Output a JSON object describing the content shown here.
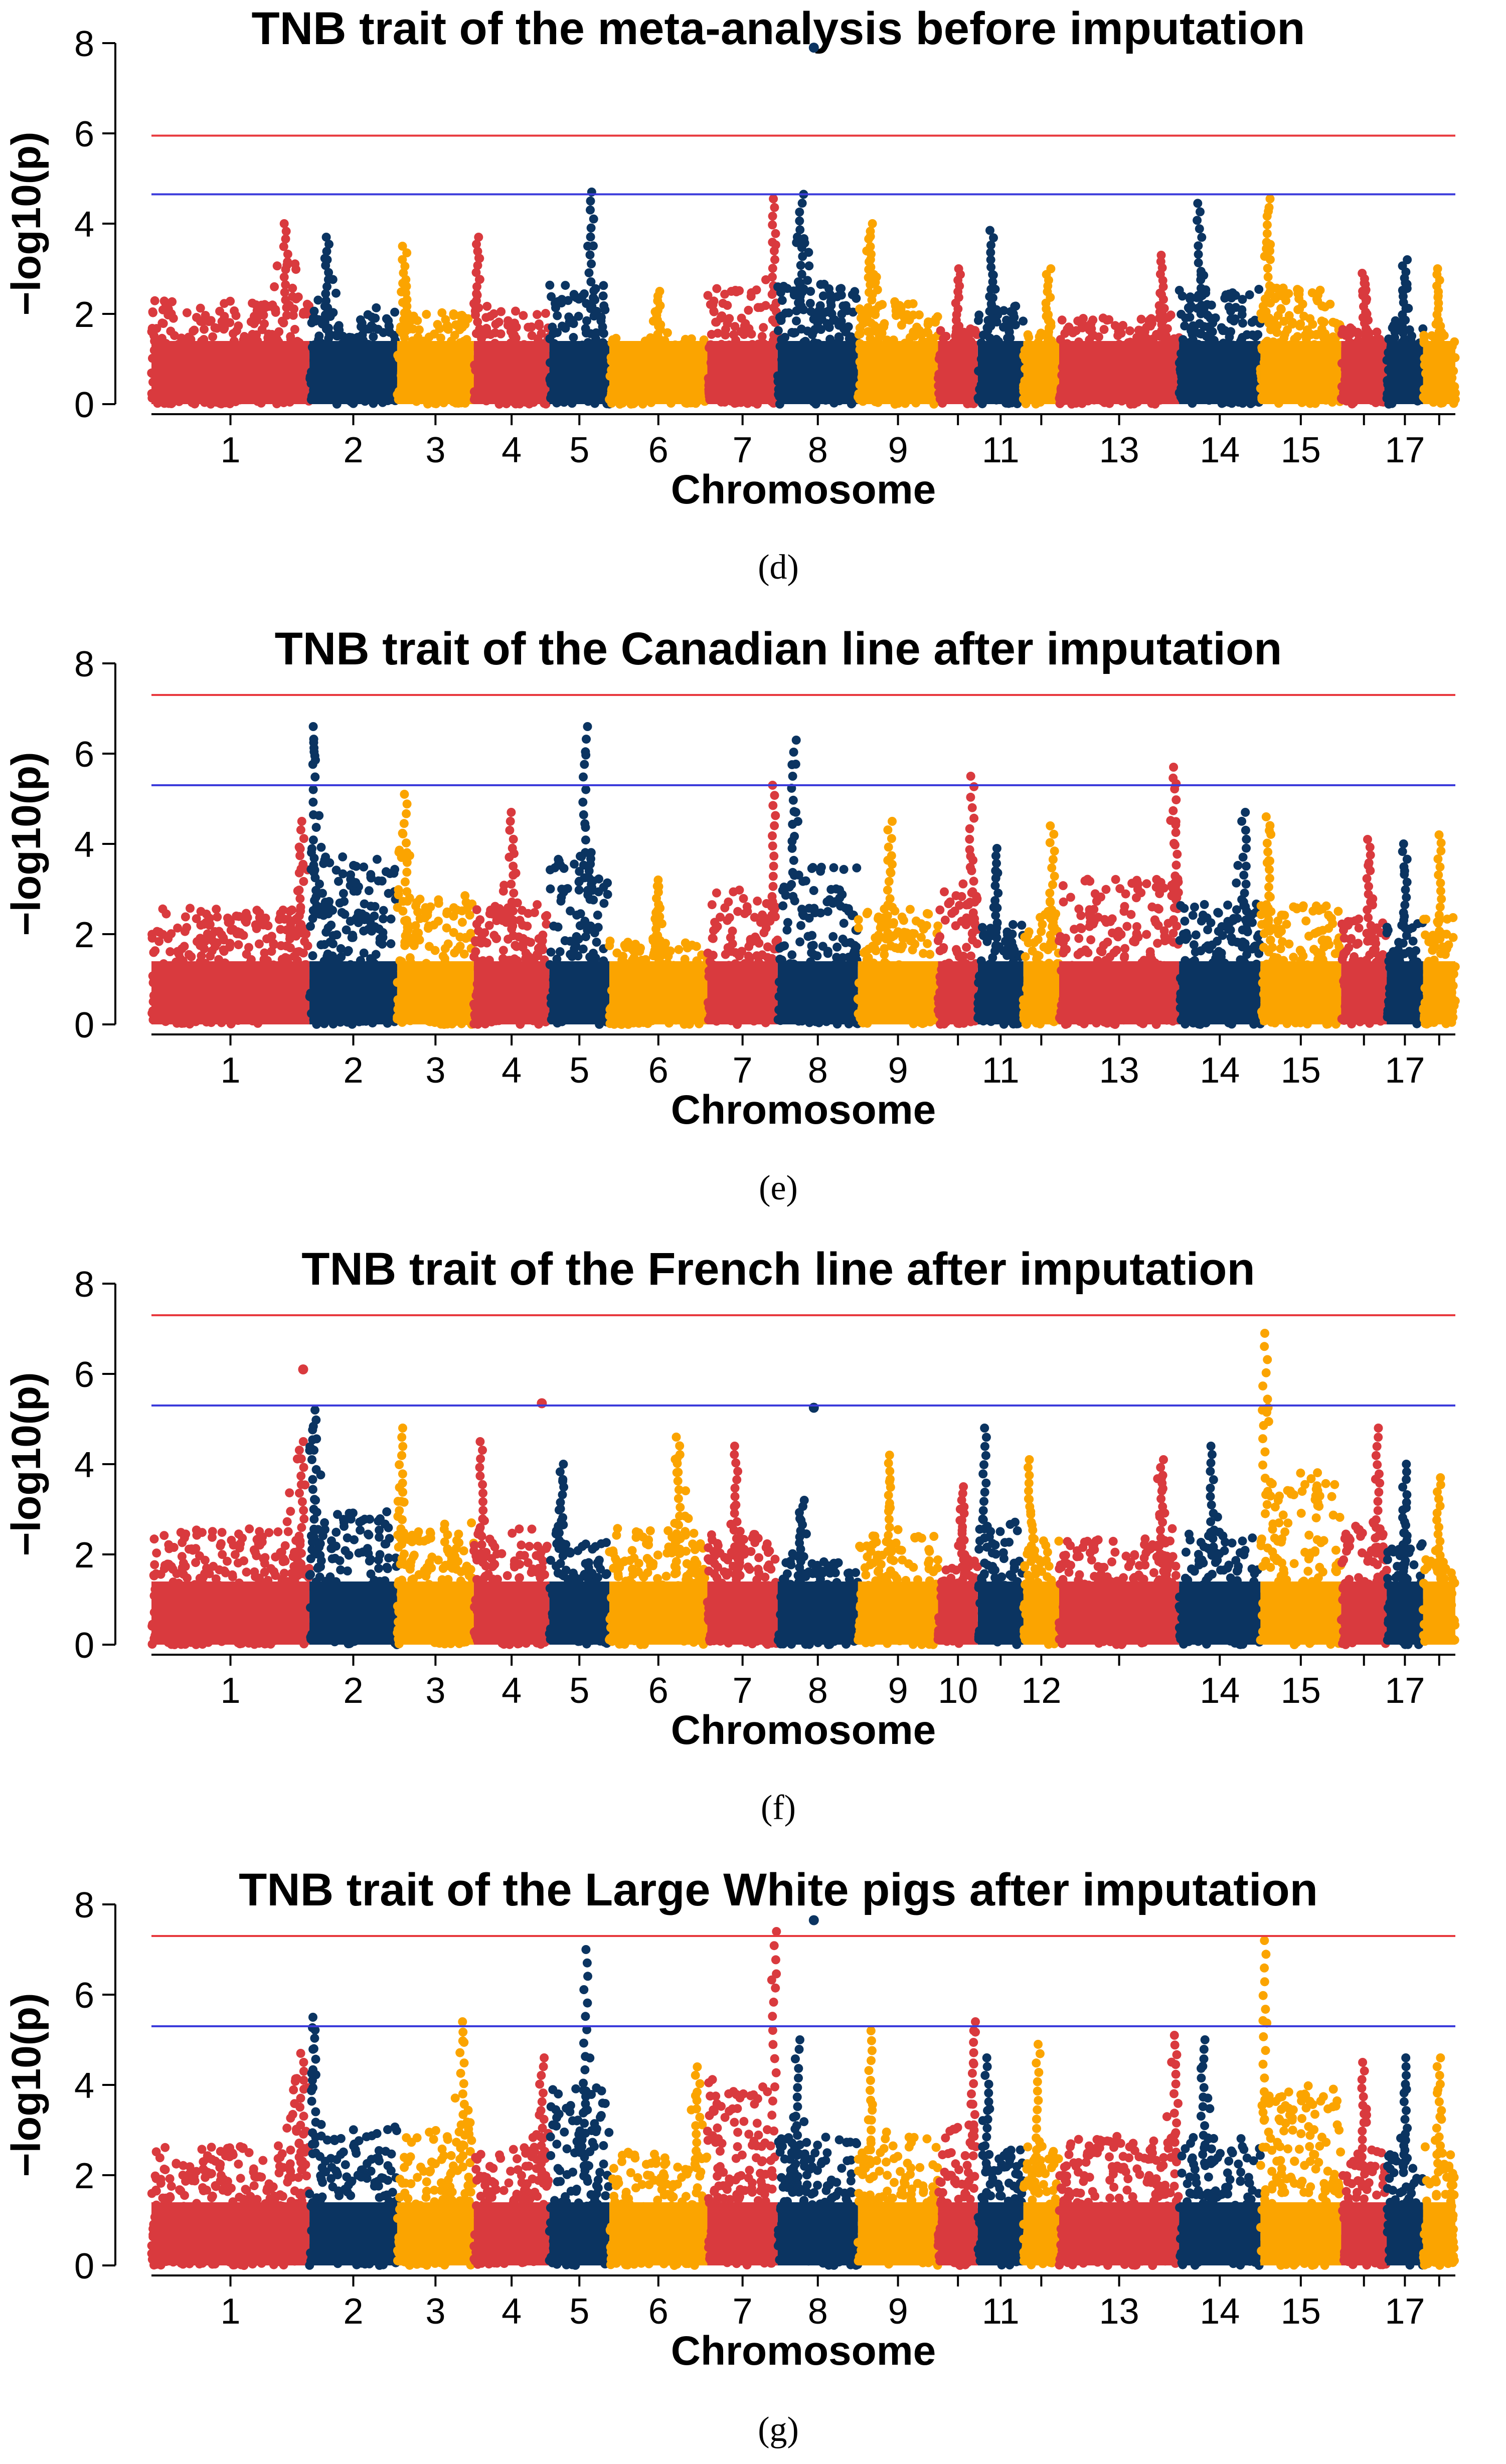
{
  "colors": {
    "red": "#d93a3e",
    "navy": "#0b3461",
    "orange": "#fba400",
    "genome_wide_line": "#e8393e",
    "suggestive_line": "#3b3bdb"
  },
  "chromosome_palette": [
    "red",
    "navy",
    "orange"
  ],
  "chart_data": [
    {
      "type": "scatter",
      "subtype": "manhattan",
      "panel_label": "(d)",
      "title": "TNB trait of the meta-analysis before imputation",
      "xlabel": "Chromosome",
      "ylabel": "−log10(p)",
      "ylim": [
        0,
        8
      ],
      "yticks": [
        0,
        2,
        4,
        6,
        8
      ],
      "xtick_labels": [
        "1",
        "2",
        "3",
        "4",
        "5",
        "6",
        "7",
        "8",
        "9",
        "11",
        "13",
        "14",
        "15",
        "17"
      ],
      "genome_wide_threshold": 5.95,
      "suggestive_threshold": 4.65,
      "chromosomes": [
        {
          "chr": 1,
          "len": 274,
          "max": 4.0,
          "peak_pos": 0.85,
          "tick_label": "1"
        },
        {
          "chr": 2,
          "len": 152,
          "max": 3.7,
          "peak_pos": 0.2,
          "tick_label": "2"
        },
        {
          "chr": 3,
          "len": 133,
          "max": 3.5,
          "peak_pos": 0.1,
          "tick_label": "3"
        },
        {
          "chr": 4,
          "len": 131,
          "max": 3.7,
          "peak_pos": 0.05,
          "tick_label": "4"
        },
        {
          "chr": 5,
          "len": 104,
          "max": 4.7,
          "peak_pos": 0.7,
          "tick_label": "5"
        },
        {
          "chr": 6,
          "len": 170,
          "max": 2.5,
          "peak_pos": 0.5,
          "tick_label": "6"
        },
        {
          "chr": 7,
          "len": 122,
          "max": 4.55,
          "peak_pos": 0.95,
          "tick_label": "7"
        },
        {
          "chr": 8,
          "len": 139,
          "max": 4.65,
          "peak_pos": 0.3,
          "tick_label": "8"
        },
        {
          "chr": 9,
          "len": 139,
          "max": 4.0,
          "peak_pos": 0.15,
          "tick_label": "9"
        },
        {
          "chr": 10,
          "len": 69,
          "max": 3.0,
          "peak_pos": 0.5,
          "tick_label": ""
        },
        {
          "chr": 11,
          "len": 79,
          "max": 3.85,
          "peak_pos": 0.3,
          "tick_label": "11"
        },
        {
          "chr": 12,
          "len": 62,
          "max": 3.0,
          "peak_pos": 0.7,
          "tick_label": ""
        },
        {
          "chr": 13,
          "len": 208,
          "max": 3.3,
          "peak_pos": 0.85,
          "tick_label": "13"
        },
        {
          "chr": 14,
          "len": 141,
          "max": 4.45,
          "peak_pos": 0.25,
          "tick_label": "14"
        },
        {
          "chr": 15,
          "len": 140,
          "max": 4.55,
          "peak_pos": 0.1,
          "tick_label": "15"
        },
        {
          "chr": 16,
          "len": 79,
          "max": 2.9,
          "peak_pos": 0.5,
          "tick_label": ""
        },
        {
          "chr": 17,
          "len": 63,
          "max": 3.2,
          "peak_pos": 0.5,
          "tick_label": "17"
        },
        {
          "chr": 18,
          "len": 56,
          "max": 3.0,
          "peak_pos": 0.5,
          "tick_label": ""
        }
      ],
      "highlighted_points": [
        {
          "chr": 8,
          "pos": 0.45,
          "y": 7.9
        }
      ]
    },
    {
      "type": "scatter",
      "subtype": "manhattan",
      "panel_label": "(e)",
      "title": "TNB trait of the Canadian line after imputation",
      "xlabel": "Chromosome",
      "ylabel": "−log10(p)",
      "ylim": [
        0,
        8
      ],
      "yticks": [
        0,
        2,
        4,
        6,
        8
      ],
      "xtick_labels": [
        "1",
        "2",
        "3",
        "4",
        "5",
        "6",
        "7",
        "8",
        "9",
        "11",
        "13",
        "14",
        "15",
        "17"
      ],
      "genome_wide_threshold": 7.3,
      "suggestive_threshold": 5.3,
      "chromosomes": [
        {
          "chr": 1,
          "len": 274,
          "max": 4.5,
          "peak_pos": 0.95,
          "tick_label": "1"
        },
        {
          "chr": 2,
          "len": 152,
          "max": 6.6,
          "peak_pos": 0.05,
          "tick_label": "2"
        },
        {
          "chr": 3,
          "len": 133,
          "max": 5.1,
          "peak_pos": 0.1,
          "tick_label": "3"
        },
        {
          "chr": 4,
          "len": 131,
          "max": 4.7,
          "peak_pos": 0.5,
          "tick_label": "4"
        },
        {
          "chr": 5,
          "len": 104,
          "max": 6.6,
          "peak_pos": 0.6,
          "tick_label": "5"
        },
        {
          "chr": 6,
          "len": 170,
          "max": 3.2,
          "peak_pos": 0.5,
          "tick_label": "6"
        },
        {
          "chr": 7,
          "len": 122,
          "max": 5.3,
          "peak_pos": 0.95,
          "tick_label": "7"
        },
        {
          "chr": 8,
          "len": 139,
          "max": 6.3,
          "peak_pos": 0.2,
          "tick_label": "8"
        },
        {
          "chr": 9,
          "len": 139,
          "max": 4.5,
          "peak_pos": 0.4,
          "tick_label": "9"
        },
        {
          "chr": 10,
          "len": 69,
          "max": 5.5,
          "peak_pos": 0.85,
          "tick_label": ""
        },
        {
          "chr": 11,
          "len": 79,
          "max": 3.9,
          "peak_pos": 0.4,
          "tick_label": "11"
        },
        {
          "chr": 12,
          "len": 62,
          "max": 4.4,
          "peak_pos": 0.8,
          "tick_label": ""
        },
        {
          "chr": 13,
          "len": 208,
          "max": 5.7,
          "peak_pos": 0.97,
          "tick_label": "13"
        },
        {
          "chr": 14,
          "len": 141,
          "max": 4.7,
          "peak_pos": 0.8,
          "tick_label": "14"
        },
        {
          "chr": 15,
          "len": 140,
          "max": 4.6,
          "peak_pos": 0.1,
          "tick_label": "15"
        },
        {
          "chr": 16,
          "len": 79,
          "max": 4.1,
          "peak_pos": 0.6,
          "tick_label": ""
        },
        {
          "chr": 17,
          "len": 63,
          "max": 4.0,
          "peak_pos": 0.5,
          "tick_label": "17"
        },
        {
          "chr": 18,
          "len": 56,
          "max": 4.2,
          "peak_pos": 0.5,
          "tick_label": ""
        }
      ],
      "highlighted_points": []
    },
    {
      "type": "scatter",
      "subtype": "manhattan",
      "panel_label": "(f)",
      "title": "TNB trait of the French line after imputation",
      "xlabel": "Chromosome",
      "ylabel": "−log10(p)",
      "ylim": [
        0,
        8
      ],
      "yticks": [
        0,
        2,
        4,
        6,
        8
      ],
      "xtick_labels": [
        "1",
        "2",
        "3",
        "4",
        "5",
        "6",
        "7",
        "8",
        "9",
        "10",
        "12",
        "14",
        "15",
        "17"
      ],
      "genome_wide_threshold": 7.3,
      "suggestive_threshold": 5.3,
      "chromosomes": [
        {
          "chr": 1,
          "len": 274,
          "max": 4.5,
          "peak_pos": 0.95,
          "tick_label": "1"
        },
        {
          "chr": 2,
          "len": 152,
          "max": 5.2,
          "peak_pos": 0.05,
          "tick_label": "2"
        },
        {
          "chr": 3,
          "len": 133,
          "max": 4.8,
          "peak_pos": 0.05,
          "tick_label": "3"
        },
        {
          "chr": 4,
          "len": 131,
          "max": 4.5,
          "peak_pos": 0.1,
          "tick_label": "4"
        },
        {
          "chr": 5,
          "len": 104,
          "max": 4.0,
          "peak_pos": 0.2,
          "tick_label": "5"
        },
        {
          "chr": 6,
          "len": 170,
          "max": 4.6,
          "peak_pos": 0.7,
          "tick_label": "6"
        },
        {
          "chr": 7,
          "len": 122,
          "max": 4.4,
          "peak_pos": 0.4,
          "tick_label": "7"
        },
        {
          "chr": 8,
          "len": 139,
          "max": 3.2,
          "peak_pos": 0.3,
          "tick_label": "8"
        },
        {
          "chr": 9,
          "len": 139,
          "max": 4.2,
          "peak_pos": 0.4,
          "tick_label": "9"
        },
        {
          "chr": 10,
          "len": 69,
          "max": 3.5,
          "peak_pos": 0.6,
          "tick_label": "10"
        },
        {
          "chr": 11,
          "len": 79,
          "max": 4.8,
          "peak_pos": 0.15,
          "tick_label": ""
        },
        {
          "chr": 12,
          "len": 62,
          "max": 4.1,
          "peak_pos": 0.2,
          "tick_label": "12"
        },
        {
          "chr": 13,
          "len": 208,
          "max": 4.1,
          "peak_pos": 0.85,
          "tick_label": ""
        },
        {
          "chr": 14,
          "len": 141,
          "max": 4.4,
          "peak_pos": 0.4,
          "tick_label": "14"
        },
        {
          "chr": 15,
          "len": 140,
          "max": 6.9,
          "peak_pos": 0.06,
          "tick_label": "15"
        },
        {
          "chr": 16,
          "len": 79,
          "max": 4.8,
          "peak_pos": 0.8,
          "tick_label": ""
        },
        {
          "chr": 17,
          "len": 63,
          "max": 4.0,
          "peak_pos": 0.5,
          "tick_label": "17"
        },
        {
          "chr": 18,
          "len": 56,
          "max": 3.7,
          "peak_pos": 0.5,
          "tick_label": ""
        }
      ],
      "highlighted_points": [
        {
          "chr": 1,
          "pos": 0.96,
          "y": 6.1
        },
        {
          "chr": 4,
          "pos": 0.9,
          "y": 5.35
        },
        {
          "chr": 8,
          "pos": 0.45,
          "y": 5.25
        }
      ]
    },
    {
      "type": "scatter",
      "subtype": "manhattan",
      "panel_label": "(g)",
      "title": "TNB trait of the Large White pigs after imputation",
      "xlabel": "Chromosome",
      "ylabel": "−log10(p)",
      "ylim": [
        0,
        8
      ],
      "yticks": [
        0,
        2,
        4,
        6,
        8
      ],
      "xtick_labels": [
        "1",
        "2",
        "3",
        "4",
        "5",
        "6",
        "7",
        "8",
        "9",
        "11",
        "13",
        "14",
        "15",
        "17"
      ],
      "genome_wide_threshold": 7.3,
      "suggestive_threshold": 5.3,
      "chromosomes": [
        {
          "chr": 1,
          "len": 274,
          "max": 4.7,
          "peak_pos": 0.95,
          "tick_label": "1"
        },
        {
          "chr": 2,
          "len": 152,
          "max": 5.5,
          "peak_pos": 0.05,
          "tick_label": "2"
        },
        {
          "chr": 3,
          "len": 133,
          "max": 5.4,
          "peak_pos": 0.85,
          "tick_label": "3"
        },
        {
          "chr": 4,
          "len": 131,
          "max": 4.6,
          "peak_pos": 0.9,
          "tick_label": "4"
        },
        {
          "chr": 5,
          "len": 104,
          "max": 7.0,
          "peak_pos": 0.6,
          "tick_label": "5"
        },
        {
          "chr": 6,
          "len": 170,
          "max": 4.4,
          "peak_pos": 0.9,
          "tick_label": "6"
        },
        {
          "chr": 7,
          "len": 122,
          "max": 7.4,
          "peak_pos": 0.95,
          "tick_label": "7"
        },
        {
          "chr": 8,
          "len": 139,
          "max": 5.0,
          "peak_pos": 0.25,
          "tick_label": "8"
        },
        {
          "chr": 9,
          "len": 139,
          "max": 5.2,
          "peak_pos": 0.15,
          "tick_label": "9"
        },
        {
          "chr": 10,
          "len": 69,
          "max": 5.4,
          "peak_pos": 0.9,
          "tick_label": ""
        },
        {
          "chr": 11,
          "len": 79,
          "max": 4.6,
          "peak_pos": 0.2,
          "tick_label": "11"
        },
        {
          "chr": 12,
          "len": 62,
          "max": 4.9,
          "peak_pos": 0.4,
          "tick_label": ""
        },
        {
          "chr": 13,
          "len": 208,
          "max": 5.1,
          "peak_pos": 0.97,
          "tick_label": "13"
        },
        {
          "chr": 14,
          "len": 141,
          "max": 5.0,
          "peak_pos": 0.3,
          "tick_label": "14"
        },
        {
          "chr": 15,
          "len": 140,
          "max": 7.2,
          "peak_pos": 0.05,
          "tick_label": "15"
        },
        {
          "chr": 16,
          "len": 79,
          "max": 4.5,
          "peak_pos": 0.5,
          "tick_label": ""
        },
        {
          "chr": 17,
          "len": 63,
          "max": 4.6,
          "peak_pos": 0.5,
          "tick_label": "17"
        },
        {
          "chr": 18,
          "len": 56,
          "max": 4.6,
          "peak_pos": 0.5,
          "tick_label": ""
        }
      ],
      "highlighted_points": [
        {
          "chr": 8,
          "pos": 0.45,
          "y": 7.65
        }
      ]
    }
  ]
}
